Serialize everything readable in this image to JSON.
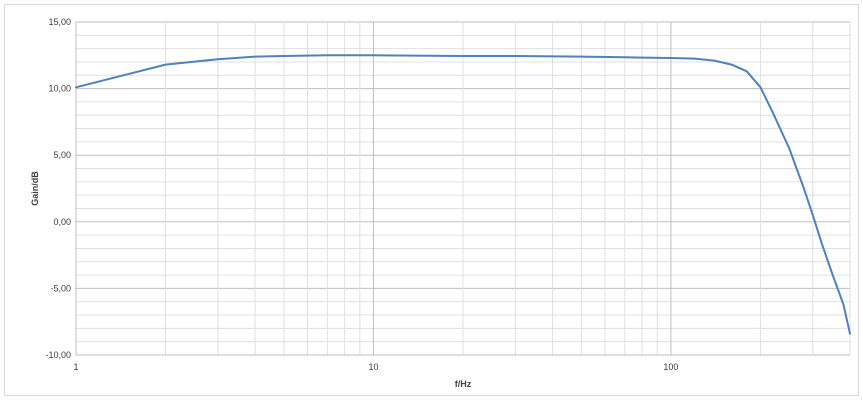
{
  "chart_data": {
    "type": "line",
    "title": "",
    "xlabel": "f/Hz",
    "ylabel": "Gain/dB",
    "x_scale": "log",
    "xlim": [
      1,
      400
    ],
    "ylim": [
      -10,
      15
    ],
    "grid": true,
    "legend": "none",
    "x_ticks": [
      {
        "value": 1,
        "label": "1"
      },
      {
        "value": 10,
        "label": "10"
      },
      {
        "value": 100,
        "label": "100"
      }
    ],
    "y_ticks": [
      {
        "value": 15,
        "label": "15,00"
      },
      {
        "value": 10,
        "label": "10,00"
      },
      {
        "value": 5,
        "label": "5,00"
      },
      {
        "value": 0,
        "label": "0,00"
      },
      {
        "value": -5,
        "label": "-5,00"
      },
      {
        "value": -10,
        "label": "-10,00"
      }
    ],
    "series": [
      {
        "color": "#4f81bd",
        "x": [
          1,
          2,
          3,
          4,
          5,
          7,
          10,
          20,
          30,
          50,
          70,
          100,
          120,
          140,
          160,
          180,
          200,
          220,
          250,
          280,
          300,
          320,
          350,
          380,
          400
        ],
        "y": [
          10.1,
          11.8,
          12.2,
          12.4,
          12.45,
          12.5,
          12.5,
          12.45,
          12.45,
          12.4,
          12.35,
          12.3,
          12.25,
          12.1,
          11.8,
          11.3,
          10.1,
          8.2,
          5.5,
          2.5,
          0.5,
          -1.5,
          -4.0,
          -6.2,
          -8.4
        ]
      }
    ]
  }
}
